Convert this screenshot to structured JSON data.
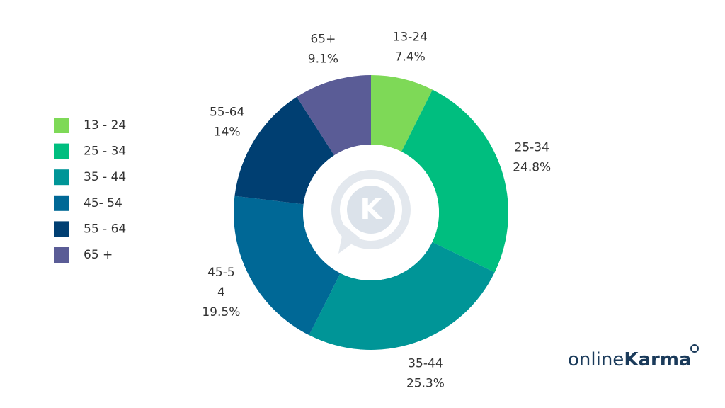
{
  "chart_data": {
    "type": "donut",
    "categories": [
      "13 - 24",
      "25 - 34",
      "35 - 44",
      "45- 54",
      "55 - 64",
      "65 +"
    ],
    "slice_labels": [
      [
        "13-24"
      ],
      [
        "25-34"
      ],
      [
        "35-44"
      ],
      [
        "45-5",
        "4"
      ],
      [
        "55-64"
      ],
      [
        "65+"
      ]
    ],
    "values": [
      7.4,
      24.8,
      25.3,
      19.5,
      14,
      9.1
    ],
    "value_labels": [
      "7.4%",
      "24.8%",
      "25.3%",
      "19.5%",
      "14%",
      "9.1%"
    ],
    "colors": [
      "#7ed957",
      "#00be7f",
      "#009597",
      "#006896",
      "#003f72",
      "#5a5c96"
    ],
    "legend": "left"
  },
  "watermark": "K",
  "brand": {
    "prefix": "online",
    "name": "Karma"
  }
}
